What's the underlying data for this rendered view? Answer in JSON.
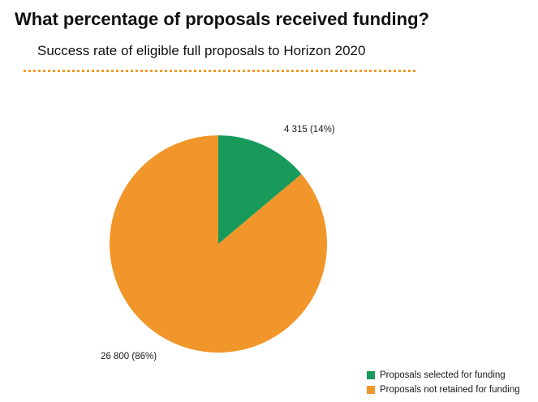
{
  "header": {
    "title": "What percentage of proposals received funding?",
    "subtitle": "Success rate of eligible full proposals to Horizon 2020"
  },
  "colors": {
    "accent": "#f29a28",
    "selected": "#189a5a",
    "not_retained": "#f0962a"
  },
  "chart_data": {
    "type": "pie",
    "title": "What percentage of proposals received funding?",
    "subtitle": "Success rate of eligible full proposals to Horizon 2020",
    "legend_position": "bottom-right",
    "slices": [
      {
        "name": "Proposals selected for funding",
        "value": 4315,
        "percent": 14,
        "label": "4 315 (14%)",
        "color": "#189a5a"
      },
      {
        "name": "Proposals not retained for funding",
        "value": 26800,
        "percent": 86,
        "label": "26 800 (86%)",
        "color": "#f0962a"
      }
    ]
  }
}
